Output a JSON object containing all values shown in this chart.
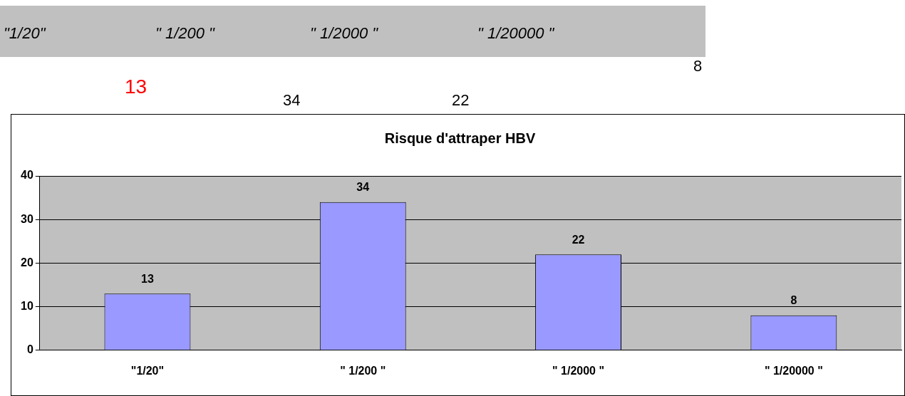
{
  "chart_data": [
    {
      "type": "other",
      "annotations": [
        "\"1/20\"",
        "\" 1/200 \"",
        "\" 1/2000 \"",
        "\" 1/20000 \"",
        "13",
        "34",
        "22",
        "8"
      ]
    },
    {
      "type": "bar",
      "title": "Risque d'attraper HBV",
      "categories": [
        "\"1/20\"",
        "\" 1/200 \"",
        "\" 1/2000 \"",
        "\" 1/20000 \""
      ],
      "values": [
        13,
        34,
        22,
        8
      ],
      "color": "#9999ff",
      "ylim": [
        0,
        40
      ],
      "yticks": [
        0,
        10,
        20,
        30,
        40
      ],
      "grid": "y",
      "data_labels": true
    }
  ]
}
